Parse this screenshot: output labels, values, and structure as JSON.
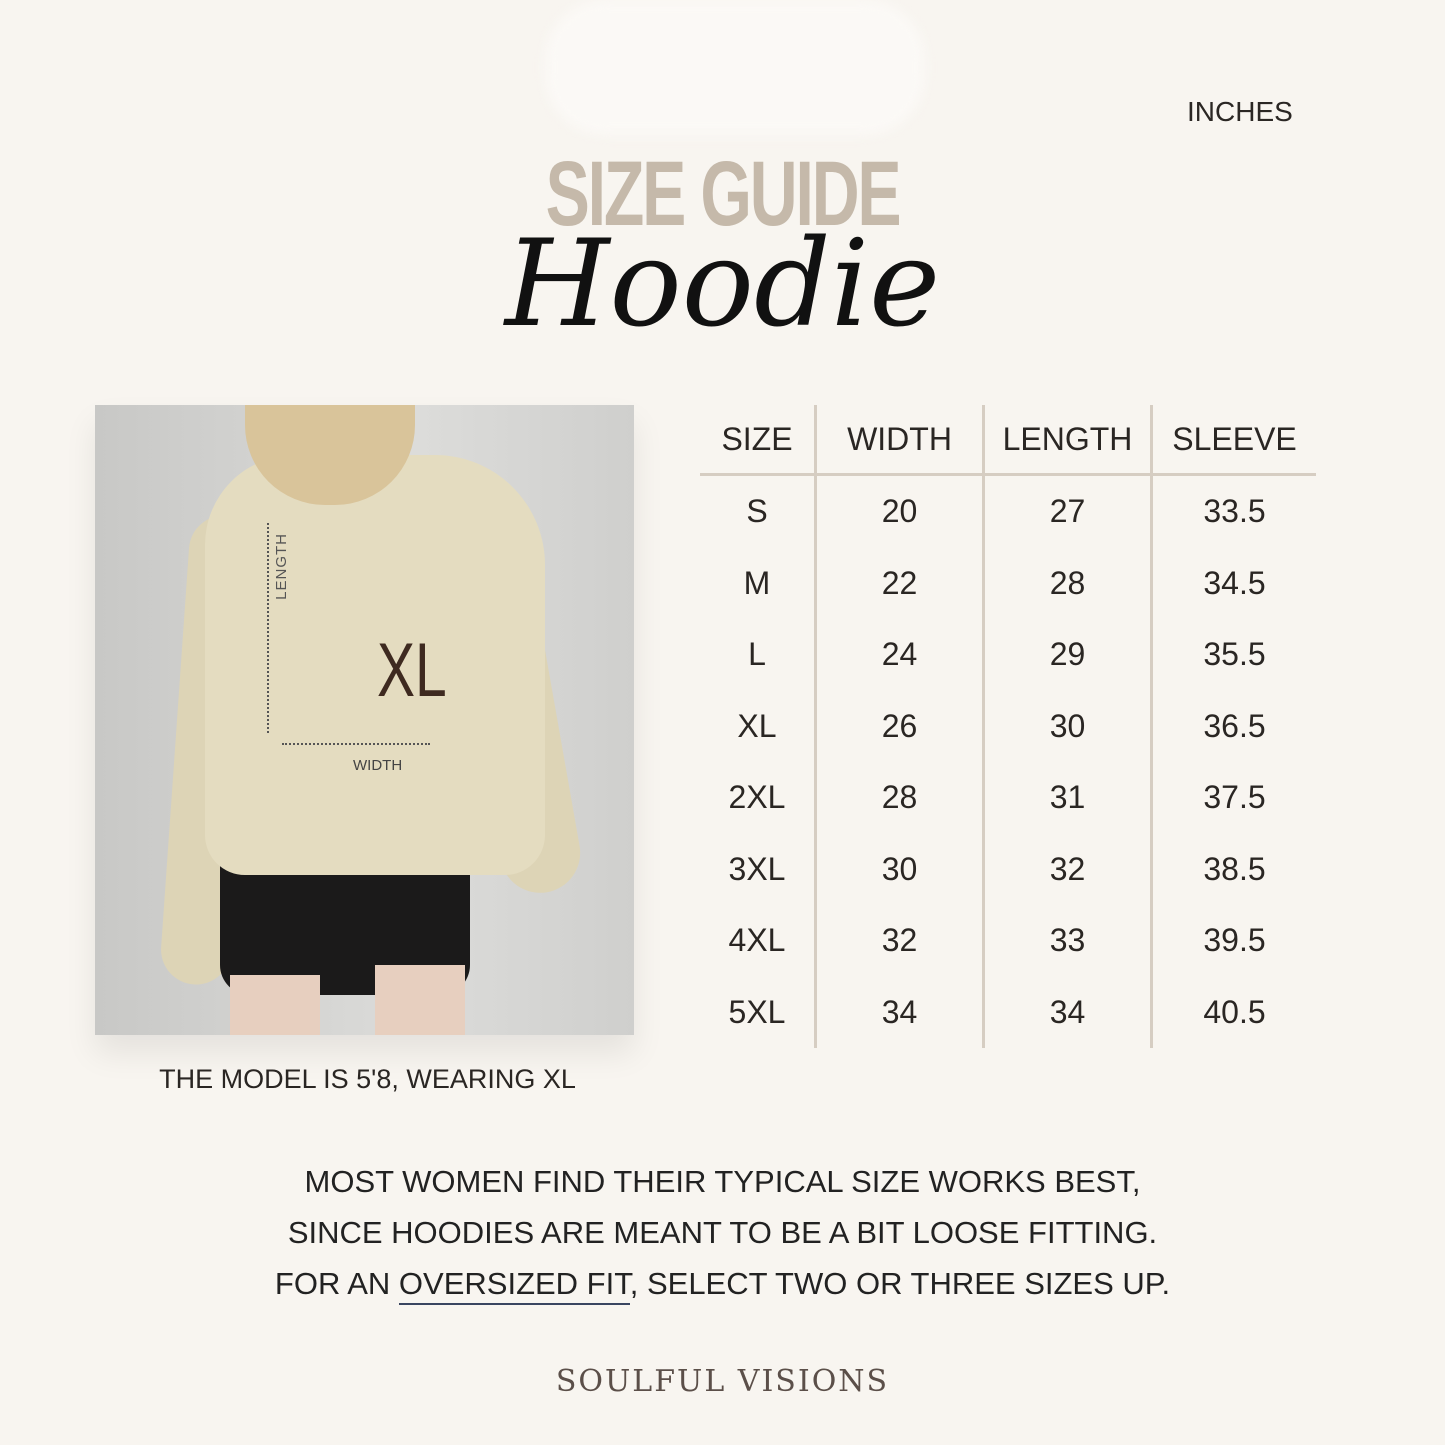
{
  "units_label": "INCHES",
  "title": "SIZE GUIDE",
  "subtitle": "Hoodie",
  "photo": {
    "length_label": "LENGTH",
    "width_label": "WIDTH",
    "size_badge": "XL"
  },
  "model_caption": "THE MODEL IS 5'8, WEARING XL",
  "table": {
    "headers": [
      "SIZE",
      "WIDTH",
      "LENGTH",
      "SLEEVE"
    ],
    "rows": [
      [
        "S",
        "20",
        "27",
        "33.5"
      ],
      [
        "M",
        "22",
        "28",
        "34.5"
      ],
      [
        "L",
        "24",
        "29",
        "35.5"
      ],
      [
        "XL",
        "26",
        "30",
        "36.5"
      ],
      [
        "2XL",
        "28",
        "31",
        "37.5"
      ],
      [
        "3XL",
        "30",
        "32",
        "38.5"
      ],
      [
        "4XL",
        "32",
        "33",
        "39.5"
      ],
      [
        "5XL",
        "34",
        "34",
        "40.5"
      ]
    ]
  },
  "note": {
    "line1": "MOST WOMEN FIND THEIR TYPICAL SIZE WORKS BEST,",
    "line2": "SINCE HOODIES ARE MEANT TO BE A BIT LOOSE FITTING.",
    "line3_pre": "FOR AN ",
    "line3_link": "OVERSIZED FIT",
    "line3_post": ", SELECT TWO OR THREE SIZES UP."
  },
  "brand": "SOULFUL VISIONS",
  "colors": {
    "background": "#f8f5f0",
    "title": "#c5b9aa",
    "divider": "#d6cdc2",
    "badge": "#3e2a20"
  }
}
